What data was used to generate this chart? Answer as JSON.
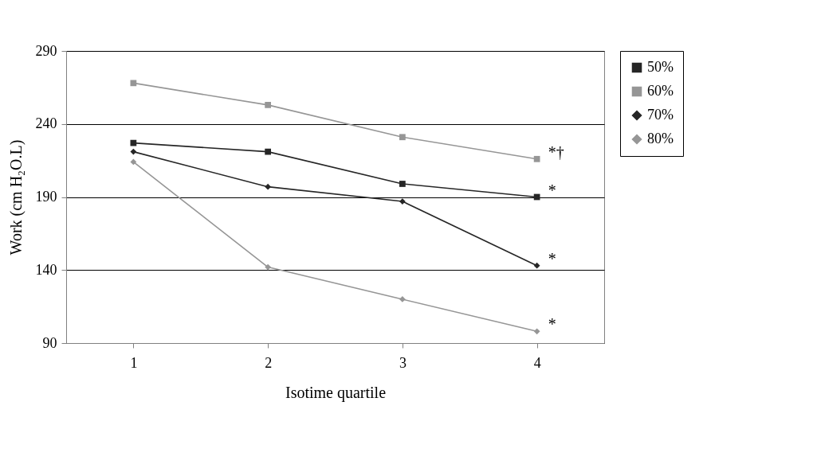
{
  "chart_data": {
    "type": "line",
    "xlabel": "Isotime quartile",
    "ylabel": "Work (cm H₂O.L)",
    "categories": [
      "1",
      "2",
      "3",
      "4"
    ],
    "series": [
      {
        "name": "50%",
        "color": "#262626",
        "marker": "square",
        "values": [
          227,
          221,
          199,
          190
        ]
      },
      {
        "name": "60%",
        "color": "#969696",
        "marker": "square",
        "values": [
          268,
          253,
          231,
          216
        ]
      },
      {
        "name": "70%",
        "color": "#262626",
        "marker": "diamond",
        "values": [
          221,
          197,
          187,
          143
        ]
      },
      {
        "name": "80%",
        "color": "#969696",
        "marker": "diamond",
        "values": [
          214,
          142,
          120,
          98
        ]
      }
    ],
    "ylim": [
      90,
      290
    ],
    "yticks": [
      90,
      140,
      190,
      240,
      290
    ],
    "grid": "y",
    "legend": "right",
    "line_style": "solid",
    "annotations": [
      {
        "text": "*†",
        "x": "4",
        "y": 216
      },
      {
        "text": "*",
        "x": "4",
        "y": 190
      },
      {
        "text": "*",
        "x": "4",
        "y": 143
      },
      {
        "text": "*",
        "x": "4",
        "y": 98
      }
    ]
  }
}
